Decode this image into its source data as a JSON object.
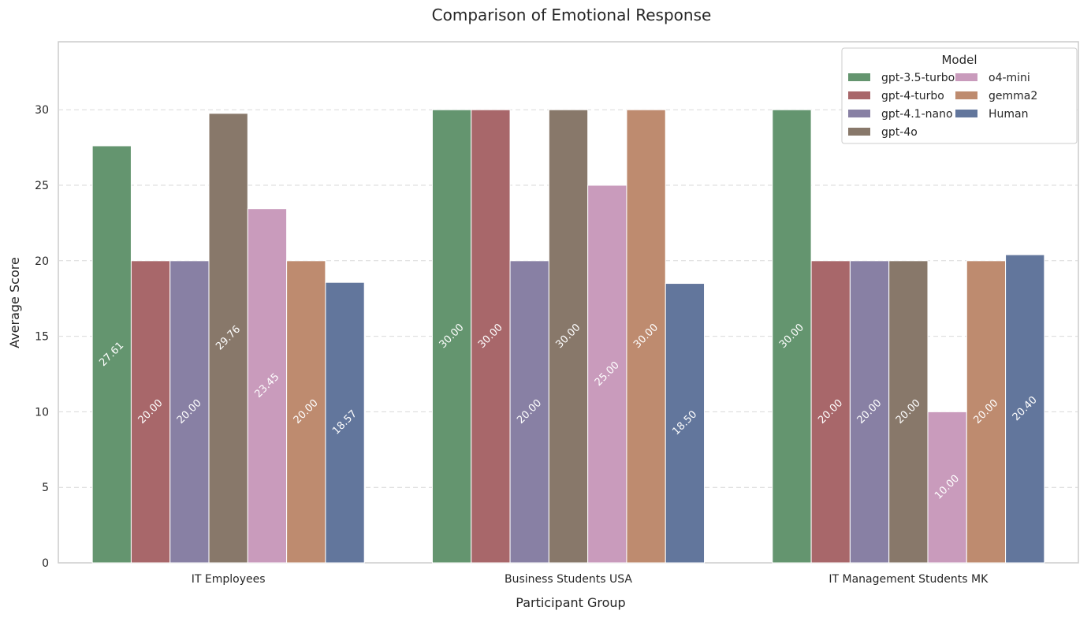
{
  "chart_data": {
    "type": "bar",
    "title": "Comparison of Emotional Response",
    "xlabel": "Participant Group",
    "ylabel": "Average Score",
    "categories": [
      "IT Employees",
      "Business Students USA",
      "IT Management Students MK"
    ],
    "ylim": [
      0,
      34.5
    ],
    "yticks": [
      0,
      5,
      10,
      15,
      20,
      25,
      30
    ],
    "grid": "y-dashed",
    "legend": {
      "title": "Model",
      "placement": "top-right",
      "columns": 2
    },
    "series": [
      {
        "name": "gpt-3.5-turbo",
        "color": "#64956f",
        "values": [
          27.61,
          30.0,
          30.0
        ]
      },
      {
        "name": "gpt-4-turbo",
        "color": "#a8676a",
        "values": [
          20.0,
          30.0,
          20.0
        ]
      },
      {
        "name": "gpt-4.1-nano",
        "color": "#8880a4",
        "values": [
          20.0,
          20.0,
          20.0
        ]
      },
      {
        "name": "gpt-4o",
        "color": "#88786a",
        "values": [
          29.76,
          30.0,
          20.0
        ]
      },
      {
        "name": "o4-mini",
        "color": "#c99bbc",
        "values": [
          23.45,
          25.0,
          10.0
        ]
      },
      {
        "name": "gemma2",
        "color": "#be8b6f",
        "values": [
          20.0,
          30.0,
          20.0
        ]
      },
      {
        "name": "Human",
        "color": "#62769c",
        "values": [
          18.57,
          18.5,
          20.4
        ]
      }
    ]
  }
}
